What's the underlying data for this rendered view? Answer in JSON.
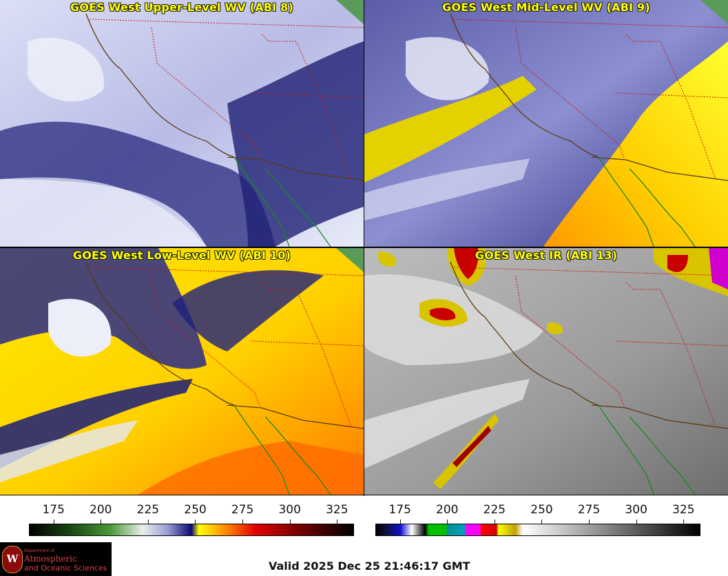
{
  "panels": {
    "upper": {
      "title": "GOES West Upper-Level WV (ABI 8)"
    },
    "mid": {
      "title": "GOES West Mid-Level WV (ABI 9)"
    },
    "low": {
      "title": "GOES West Low-Level WV (ABI 10)"
    },
    "ir": {
      "title": "GOES West IR (ABI 13)"
    }
  },
  "colorbars": {
    "wv": {
      "ticks": [
        "175",
        "200",
        "225",
        "250",
        "275",
        "300",
        "325"
      ],
      "range": [
        162,
        334
      ],
      "stops": [
        {
          "v": 162,
          "c": "#000000"
        },
        {
          "v": 185,
          "c": "#1c4a14"
        },
        {
          "v": 205,
          "c": "#4a9a3a"
        },
        {
          "v": 222,
          "c": "#e8f0e8"
        },
        {
          "v": 235,
          "c": "#9aa0d8"
        },
        {
          "v": 248,
          "c": "#0a0a70"
        },
        {
          "v": 252,
          "c": "#ffff00"
        },
        {
          "v": 268,
          "c": "#ff7a00"
        },
        {
          "v": 282,
          "c": "#e00000"
        },
        {
          "v": 310,
          "c": "#600000"
        },
        {
          "v": 334,
          "c": "#000000"
        }
      ]
    },
    "ir": {
      "ticks": [
        "175",
        "200",
        "225",
        "250",
        "275",
        "300",
        "325"
      ],
      "range": [
        162,
        334
      ],
      "stops": [
        {
          "v": 162,
          "c": "#000000"
        },
        {
          "v": 168,
          "c": "#10104a"
        },
        {
          "v": 175,
          "c": "#1010d0"
        },
        {
          "v": 181,
          "c": "#ffffff"
        },
        {
          "v": 188,
          "c": "#000000"
        },
        {
          "v": 190,
          "c": "#00c000"
        },
        {
          "v": 199,
          "c": "#00c000"
        },
        {
          "v": 200,
          "c": "#009090"
        },
        {
          "v": 209,
          "c": "#00a0c0"
        },
        {
          "v": 210,
          "c": "#ff00ff"
        },
        {
          "v": 217,
          "c": "#ff00ff"
        },
        {
          "v": 218,
          "c": "#ff0000"
        },
        {
          "v": 226,
          "c": "#d00000"
        },
        {
          "v": 227,
          "c": "#ffff00"
        },
        {
          "v": 236,
          "c": "#c0a000"
        },
        {
          "v": 240,
          "c": "#ffffff"
        },
        {
          "v": 334,
          "c": "#000000"
        }
      ]
    }
  },
  "logo": {
    "crest": "W",
    "dept": "Department of",
    "line1": "Atmospheric",
    "line2": "and Oceanic Sciences"
  },
  "valid_time": "Valid 2025 Dec 25 21:46:17 GMT"
}
